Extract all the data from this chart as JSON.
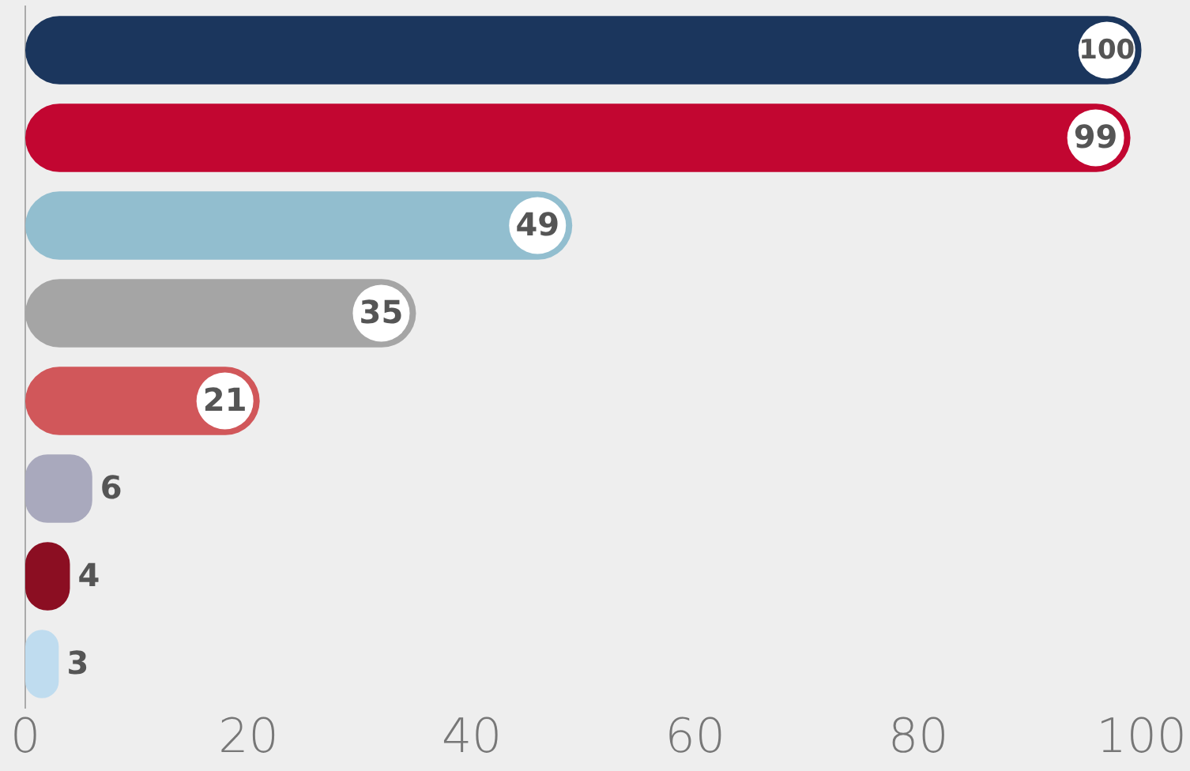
{
  "chart_data": {
    "type": "bar",
    "orientation": "horizontal",
    "categories": [
      null,
      null,
      null,
      null,
      null,
      null,
      null,
      null
    ],
    "values": [
      100,
      99,
      49,
      35,
      21,
      6,
      4,
      3
    ],
    "colors": [
      "#1b365d",
      "#c20631",
      "#92becf",
      "#a5a5a5",
      "#d1575a",
      "#a9a9bd",
      "#8b0e22",
      "#bfdcef"
    ],
    "xlim": [
      0,
      100
    ],
    "xticks": [
      0,
      20,
      40,
      60,
      80,
      100
    ],
    "grid": false,
    "legend": false,
    "data_labels": true,
    "tick_labels": "x"
  }
}
